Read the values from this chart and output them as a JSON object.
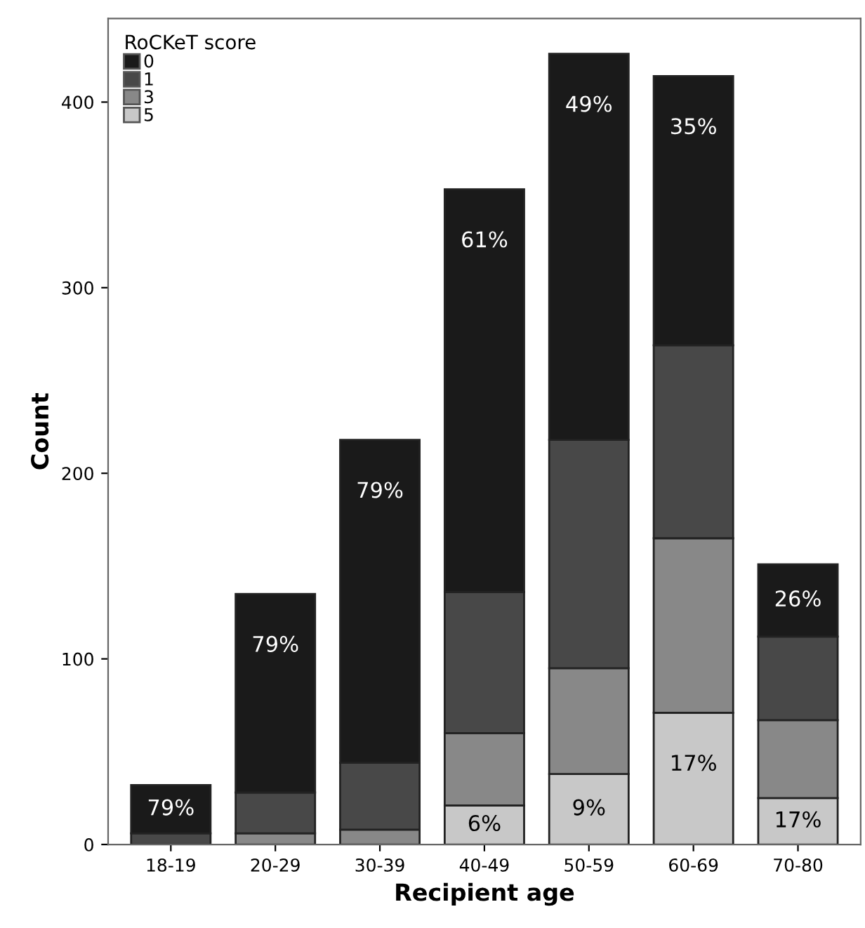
{
  "chart_data": {
    "type": "bar",
    "stacked": true,
    "xlabel": "Recipient age",
    "ylabel": "Count",
    "legend_title": "RoCKeT score",
    "legend": "top left",
    "grid": false,
    "categories": [
      "18-19",
      "20-29",
      "30-39",
      "40-49",
      "50-59",
      "60-69",
      "70-80"
    ],
    "ylim": [
      0,
      445
    ],
    "yticks": [
      0,
      100,
      200,
      300,
      400
    ],
    "series": [
      {
        "name": "5",
        "color": "#c8c8c8",
        "values": [
          0,
          null,
          0,
          21,
          38,
          71,
          25
        ]
      },
      {
        "name": "3",
        "color": "#888888",
        "values": [
          null,
          6,
          8,
          39,
          57,
          94,
          42
        ]
      },
      {
        "name": "1",
        "color": "#484848",
        "values": [
          6,
          22,
          36,
          76,
          123,
          104,
          45
        ]
      },
      {
        "name": "0",
        "color": "#1a1a1a",
        "values": [
          26,
          107,
          174,
          217,
          208,
          145,
          39
        ]
      }
    ],
    "annotations": [
      {
        "text": "79%",
        "x": "18-19",
        "y": 33
      },
      {
        "text": "79%",
        "x": "20-29",
        "y": 135
      },
      {
        "text": "79%",
        "x": "30-39",
        "y": 218
      },
      {
        "text": "61%",
        "x": "40-49",
        "y": 353
      },
      {
        "text": "49%",
        "x": "50-59",
        "y": 426
      },
      {
        "text": "35%",
        "x": "60-69",
        "y": 414
      },
      {
        "text": "26%",
        "x": "70-80",
        "y": 151
      },
      {
        "text": "6%",
        "x": "40-49",
        "y": 21
      },
      {
        "text": "9%",
        "x": "50-59",
        "y": 38
      },
      {
        "text": "17%",
        "x": "60-69",
        "y": 71
      },
      {
        "text": "17%",
        "x": "70-80",
        "y": 25
      }
    ]
  }
}
